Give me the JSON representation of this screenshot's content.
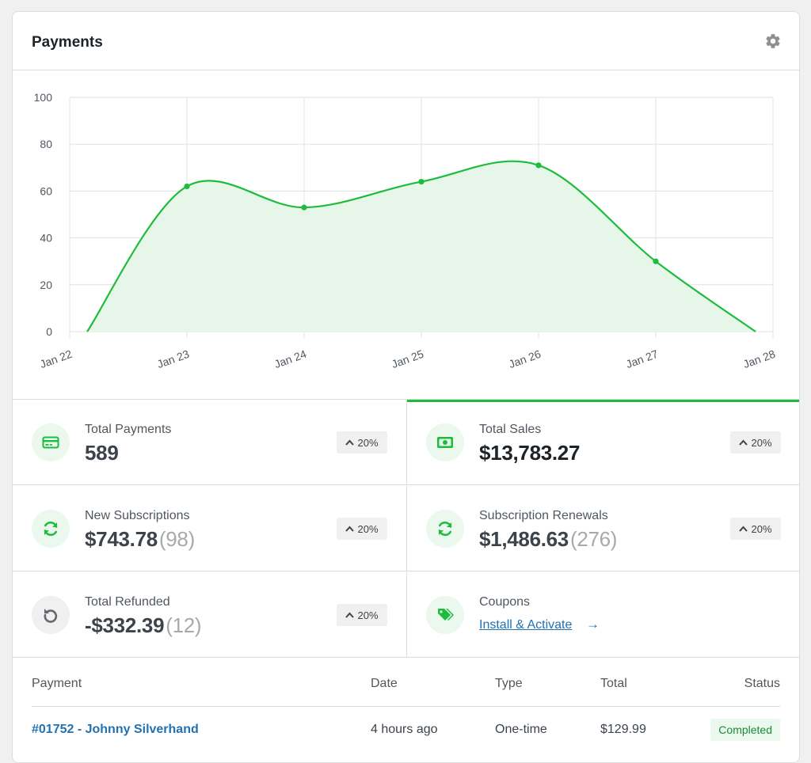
{
  "header": {
    "title": "Payments",
    "settings_icon": "gear-icon"
  },
  "chart_data": {
    "type": "area",
    "x": [
      "Jan 22",
      "Jan 23",
      "Jan 24",
      "Jan 25",
      "Jan 26",
      "Jan 27",
      "Jan 28"
    ],
    "series": [
      {
        "values": [
          0,
          62,
          53,
          64,
          71,
          30,
          0
        ]
      }
    ],
    "ylim": [
      0,
      100
    ],
    "yticks": [
      0,
      20,
      40,
      60,
      80,
      100
    ],
    "grid": true,
    "line_color": "#1ebc3d",
    "fill_color": "#e6f7ea"
  },
  "stats": {
    "total_payments": {
      "label": "Total Payments",
      "value": "589",
      "change": "20%",
      "icon": "credit-card-icon"
    },
    "total_sales": {
      "label": "Total Sales",
      "value": "$13,783.27",
      "change": "20%",
      "icon": "money-icon"
    },
    "new_subscriptions": {
      "label": "New Subscriptions",
      "value": "$743.78",
      "count": "(98)",
      "change": "20%",
      "icon": "refresh-icon"
    },
    "subscription_renewals": {
      "label": "Subscription Renewals",
      "value": "$1,486.63",
      "count": "(276)",
      "change": "20%",
      "icon": "refresh-icon"
    },
    "total_refunded": {
      "label": "Total Refunded",
      "value": "-$332.39",
      "count": "(12)",
      "change": "20%",
      "icon": "undo-icon"
    },
    "coupons": {
      "label": "Coupons",
      "link": "Install & Activate",
      "arrow": "→",
      "icon": "tag-icon"
    }
  },
  "table": {
    "columns": [
      "Payment",
      "Date",
      "Type",
      "Total",
      "Status"
    ],
    "rows": [
      {
        "payment": "#01752 - Johnny Silverhand",
        "date": "4 hours ago",
        "type": "One-time",
        "total": "$129.99",
        "status": "Completed"
      }
    ]
  },
  "colors": {
    "accent": "#1ebc3d",
    "link": "#2271b1"
  }
}
